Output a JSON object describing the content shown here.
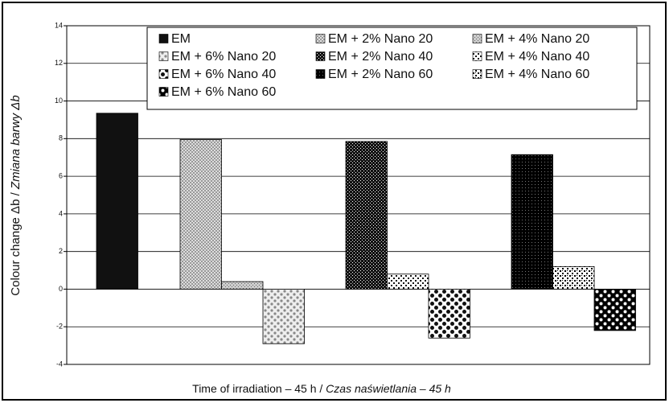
{
  "chart_data": {
    "type": "bar",
    "x_label": {
      "text": "Time of irradiation – 45 h /",
      "italic": "Czas naświetlania – 45 h"
    },
    "y_label": {
      "text": "Colour change Δb /",
      "italic": "Zmiana barwy Δb"
    },
    "series": [
      {
        "name": "EM",
        "values": [
          9.35
        ]
      },
      {
        "name": "EM + 2% Nano 20",
        "values": [
          7.95
        ]
      },
      {
        "name": "EM + 4% Nano 20",
        "values": [
          0.4
        ]
      },
      {
        "name": "EM + 6% Nano 20",
        "values": [
          -2.9
        ]
      },
      {
        "name": "EM + 2% Nano 40",
        "values": [
          7.85
        ]
      },
      {
        "name": "EM + 4% Nano 40",
        "values": [
          0.8
        ]
      },
      {
        "name": "EM + 6% Nano 40",
        "values": [
          -2.6
        ]
      },
      {
        "name": "EM + 2% Nano 60",
        "values": [
          7.15
        ]
      },
      {
        "name": "EM + 4% Nano 60",
        "values": [
          1.2
        ]
      },
      {
        "name": "EM + 6% Nano 60",
        "values": [
          -2.2
        ]
      }
    ],
    "ylim": [
      -4,
      14
    ],
    "yticks": [
      -4,
      -2,
      0,
      2,
      4,
      6,
      8,
      10,
      12,
      14
    ],
    "grid": true
  }
}
